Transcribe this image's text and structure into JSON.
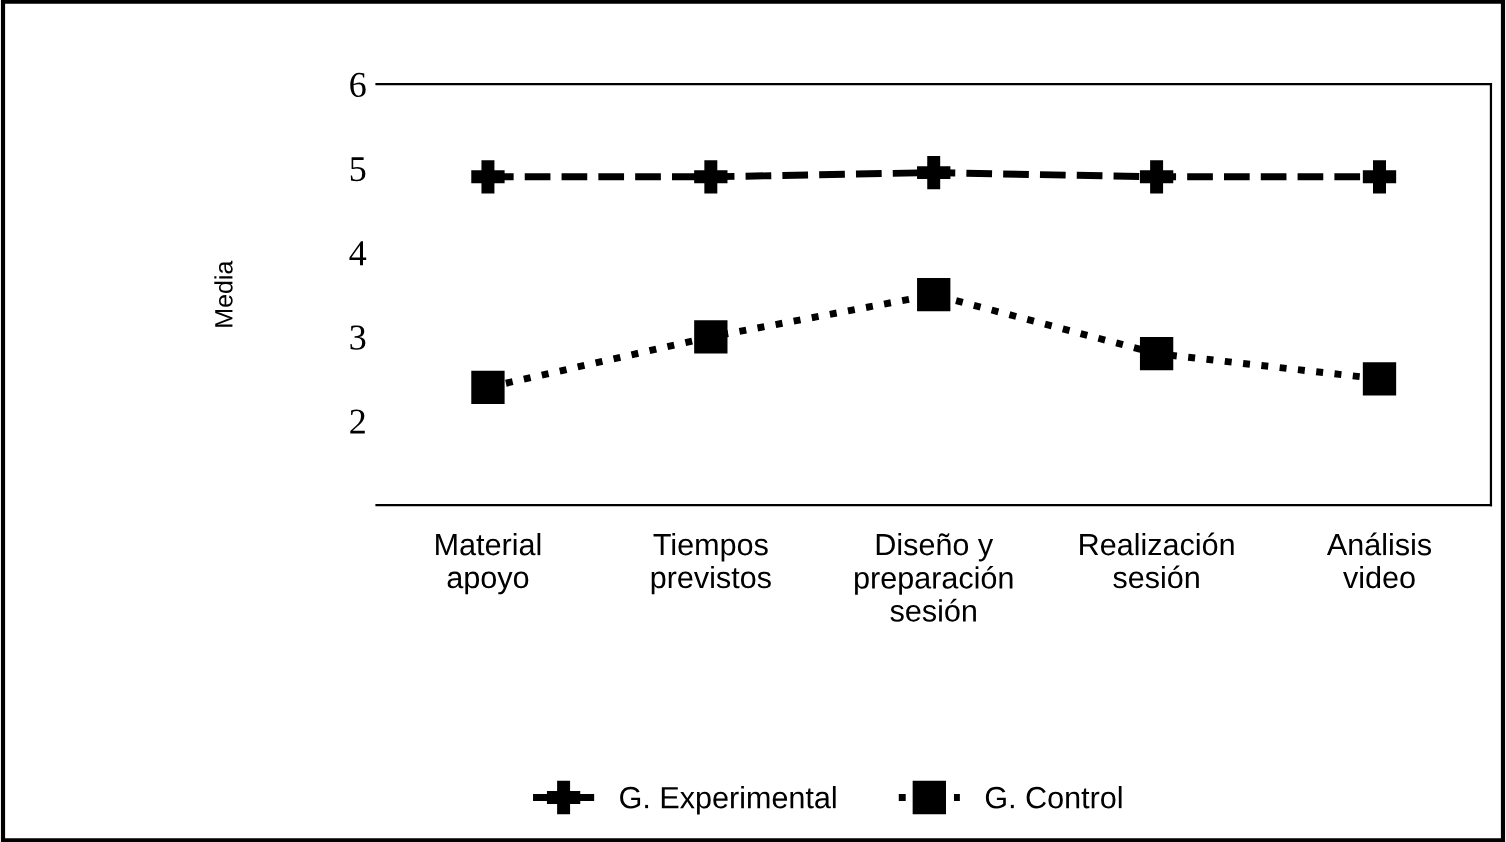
{
  "chart_data": {
    "type": "line",
    "ylabel": "Media",
    "categories": [
      "Material\napoyo",
      "Tiempos\nprevistos",
      "Diseño y\npreparación\nsesión",
      "Realización\nsesión",
      "Análisis\nvideo"
    ],
    "series": [
      {
        "name": "G. Experimental",
        "color": "#000000",
        "values": [
          4.9,
          4.9,
          4.95,
          4.9,
          4.9
        ],
        "marker": "cross",
        "line_style": "dashed"
      },
      {
        "name": "G. Control",
        "color": "#000000",
        "values": [
          2.4,
          3.0,
          3.5,
          2.8,
          2.5
        ],
        "marker": "square",
        "line_style": "dotted"
      }
    ],
    "ylim": [
      1,
      6
    ],
    "yticks": [
      2,
      3,
      4,
      5,
      6
    ],
    "grid": false,
    "legend": "bottom"
  }
}
